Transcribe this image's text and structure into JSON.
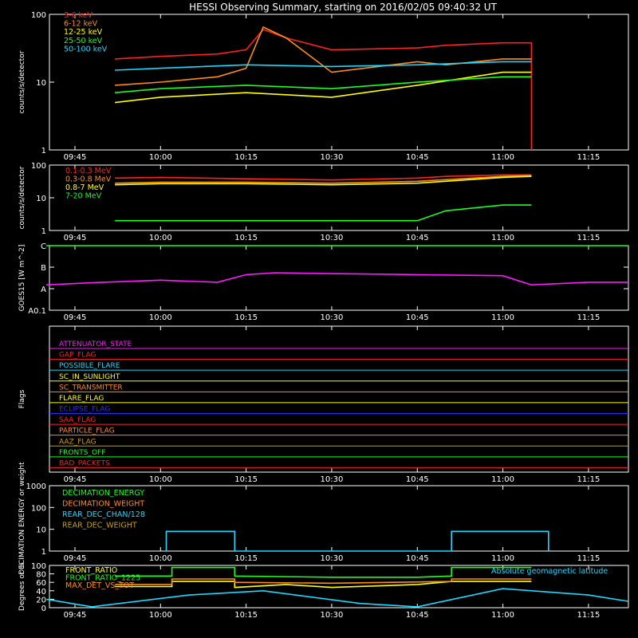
{
  "title": "HESSI Observing Summary, starting on 2016/02/05 09:40:32 UT",
  "time_ticks": [
    "09:45",
    "10:00",
    "10:15",
    "10:30",
    "10:45",
    "11:00",
    "11:15"
  ],
  "colors": {
    "red": "#ff2020",
    "orange": "#ff8c1a",
    "yellow": "#ffff00",
    "green": "#1aff1a",
    "cyan": "#1ad9ff",
    "magenta": "#ff1aff",
    "blue": "#2030ff",
    "olive": "#c8a000",
    "white": "#ffffff"
  },
  "chart_data": [
    {
      "id": "counts_energy",
      "type": "line",
      "ylabel": "counts/s/detector",
      "yscale": "log",
      "ylim": [
        1,
        100
      ],
      "ytick_labels": [
        "1",
        "10",
        "100"
      ],
      "x_range": [
        "09:40:32",
        "11:22:00"
      ],
      "series": [
        {
          "name": "3-6 keV",
          "color": "red",
          "x": [
            "09:52",
            "10:00",
            "10:10",
            "10:15",
            "10:18",
            "10:22",
            "10:30",
            "10:45",
            "10:50",
            "11:00",
            "11:05",
            "11:05"
          ],
          "y": [
            22,
            24,
            26,
            30,
            60,
            45,
            30,
            32,
            35,
            38,
            38,
            1
          ]
        },
        {
          "name": "6-12 keV",
          "color": "orange",
          "x": [
            "09:52",
            "10:00",
            "10:10",
            "10:15",
            "10:18",
            "10:22",
            "10:30",
            "10:45",
            "10:50",
            "11:00",
            "11:05"
          ],
          "y": [
            9,
            10,
            12,
            16,
            65,
            45,
            14,
            20,
            18,
            22,
            22
          ]
        },
        {
          "name": "12-25 keV",
          "color": "yellow",
          "x": [
            "09:52",
            "10:00",
            "10:15",
            "10:30",
            "10:45",
            "11:00",
            "11:05"
          ],
          "y": [
            5,
            6,
            7,
            6,
            9,
            14,
            14
          ]
        },
        {
          "name": "25-50 keV",
          "color": "green",
          "x": [
            "09:52",
            "10:00",
            "10:15",
            "10:30",
            "10:45",
            "11:00",
            "11:05"
          ],
          "y": [
            7,
            8,
            9,
            8,
            10,
            12,
            12
          ]
        },
        {
          "name": "50-100 keV",
          "color": "cyan",
          "x": [
            "09:52",
            "10:00",
            "10:15",
            "10:30",
            "10:45",
            "11:00",
            "11:05"
          ],
          "y": [
            15,
            16,
            18,
            17,
            18,
            20,
            20
          ]
        }
      ]
    },
    {
      "id": "counts_mev",
      "type": "line",
      "ylabel": "counts/s/detector",
      "yscale": "log",
      "ylim": [
        1,
        100
      ],
      "ytick_labels": [
        "1",
        "10",
        "100"
      ],
      "series": [
        {
          "name": "0.1-0.3 MeV",
          "color": "red",
          "x": [
            "09:52",
            "10:00",
            "10:15",
            "10:30",
            "10:45",
            "10:50",
            "11:00",
            "11:05"
          ],
          "y": [
            40,
            42,
            38,
            35,
            40,
            45,
            50,
            50
          ]
        },
        {
          "name": "0.3-0.8 MeV",
          "color": "orange",
          "x": [
            "09:52",
            "10:00",
            "10:15",
            "10:30",
            "10:45",
            "11:00",
            "11:05"
          ],
          "y": [
            28,
            30,
            30,
            28,
            32,
            45,
            48
          ]
        },
        {
          "name": "0.8-7 MeV",
          "color": "yellow",
          "x": [
            "09:52",
            "10:00",
            "10:15",
            "10:30",
            "10:45",
            "11:00",
            "11:05"
          ],
          "y": [
            25,
            27,
            27,
            25,
            28,
            42,
            45
          ]
        },
        {
          "name": "7-20 MeV",
          "color": "green",
          "x": [
            "09:52",
            "10:00",
            "10:15",
            "10:30",
            "10:45",
            "10:50",
            "11:00",
            "11:05"
          ],
          "y": [
            2,
            2,
            2,
            2,
            2,
            4,
            6,
            6
          ]
        }
      ]
    },
    {
      "id": "goes",
      "type": "line",
      "ylabel": "GOES15 [W m^-2]",
      "yscale": "log",
      "ytick_labels": [
        "A0.1",
        "A",
        "B",
        "C"
      ],
      "series": [
        {
          "name": "GOES long",
          "color": "green",
          "x": [
            "09:40",
            "11:22"
          ],
          "y": [
            "C",
            "C"
          ]
        },
        {
          "name": "GOES short",
          "color": "magenta",
          "x": [
            "09:40",
            "09:50",
            "10:00",
            "10:10",
            "10:15",
            "10:20",
            "10:30",
            "10:45",
            "11:00",
            "11:05",
            "11:15",
            "11:22"
          ],
          "y": [
            0.15,
            0.2,
            0.25,
            0.2,
            0.45,
            0.55,
            0.5,
            0.45,
            0.4,
            0.15,
            0.2,
            0.2
          ]
        }
      ]
    },
    {
      "id": "flags",
      "type": "table",
      "ylabel": "Flags",
      "flags": [
        {
          "name": "ATTENUATOR_STATE",
          "color": "magenta"
        },
        {
          "name": "GAP_FLAG",
          "color": "red"
        },
        {
          "name": "POSSIBLE_FLARE",
          "color": "cyan"
        },
        {
          "name": "SC_IN_SUNLIGHT",
          "color": "yellow"
        },
        {
          "name": "SC_TRANSMITTER",
          "color": "orange"
        },
        {
          "name": "FLARE_FLAG",
          "color": "yellow"
        },
        {
          "name": "ECLIPSE_FLAG",
          "color": "blue"
        },
        {
          "name": "SAA_FLAG",
          "color": "red"
        },
        {
          "name": "PARTICLE_FLAG",
          "color": "orange"
        },
        {
          "name": "AAZ_FLAG",
          "color": "olive"
        },
        {
          "name": "FRONTS_OFF",
          "color": "green"
        },
        {
          "name": "BAD_PACKETS",
          "color": "red"
        }
      ]
    },
    {
      "id": "decimation",
      "type": "line",
      "ylabel": "DECIMATION ENERGY or weight",
      "yscale": "log",
      "ylim": [
        1,
        1000
      ],
      "ytick_labels": [
        "1",
        "10",
        "100",
        "1000"
      ],
      "series": [
        {
          "name": "DECIMATION_ENERGY",
          "color": "green",
          "x": [],
          "y": []
        },
        {
          "name": "DECIMATION_WEIGHT",
          "color": "orange",
          "x": [],
          "y": []
        },
        {
          "name": "REAR_DEC_CHAN/128",
          "color": "cyan",
          "x": [
            "10:01",
            "10:01",
            "10:13",
            "10:13",
            "10:51",
            "10:51",
            "11:08",
            "11:08"
          ],
          "y": [
            1,
            8,
            8,
            1,
            1,
            8,
            8,
            1
          ]
        },
        {
          "name": "REAR_DEC_WEIGHT",
          "color": "olive",
          "x": [],
          "y": []
        }
      ]
    },
    {
      "id": "ratios",
      "type": "line",
      "ylabel": "Degrees or %",
      "ylim": [
        0,
        100
      ],
      "ytick_labels": [
        "0",
        "20",
        "40",
        "60",
        "80",
        "100"
      ],
      "annotation": "Absolute geomagnetic latitude",
      "series": [
        {
          "name": "FRONT_RATIO",
          "color": "yellow",
          "x": [
            "09:52",
            "10:02",
            "10:02",
            "10:13",
            "10:13",
            "10:22",
            "10:30",
            "10:45",
            "10:51",
            "10:51",
            "11:05"
          ],
          "y": [
            50,
            50,
            62,
            62,
            48,
            55,
            48,
            55,
            62,
            62,
            62
          ]
        },
        {
          "name": "FRONT_RATIO_1225",
          "color": "green",
          "x": [
            "09:52",
            "10:02",
            "10:02",
            "10:13",
            "10:13",
            "10:30",
            "10:45",
            "10:51",
            "10:51",
            "11:05"
          ],
          "y": [
            75,
            75,
            95,
            95,
            75,
            72,
            72,
            75,
            95,
            95
          ]
        },
        {
          "name": "MAX_DET_VS_TOT",
          "color": "orange",
          "x": [
            "09:52",
            "10:02",
            "10:02",
            "10:13",
            "10:13",
            "10:30",
            "10:51",
            "10:51",
            "11:05"
          ],
          "y": [
            55,
            55,
            68,
            68,
            60,
            58,
            62,
            68,
            68
          ]
        },
        {
          "name": "Absolute geomagnetic latitude",
          "color": "cyan",
          "x": [
            "09:40",
            "09:48",
            "10:05",
            "10:18",
            "10:35",
            "10:45",
            "11:00",
            "11:15",
            "11:22"
          ],
          "y": [
            20,
            2,
            30,
            40,
            10,
            2,
            45,
            30,
            15
          ]
        }
      ]
    }
  ]
}
